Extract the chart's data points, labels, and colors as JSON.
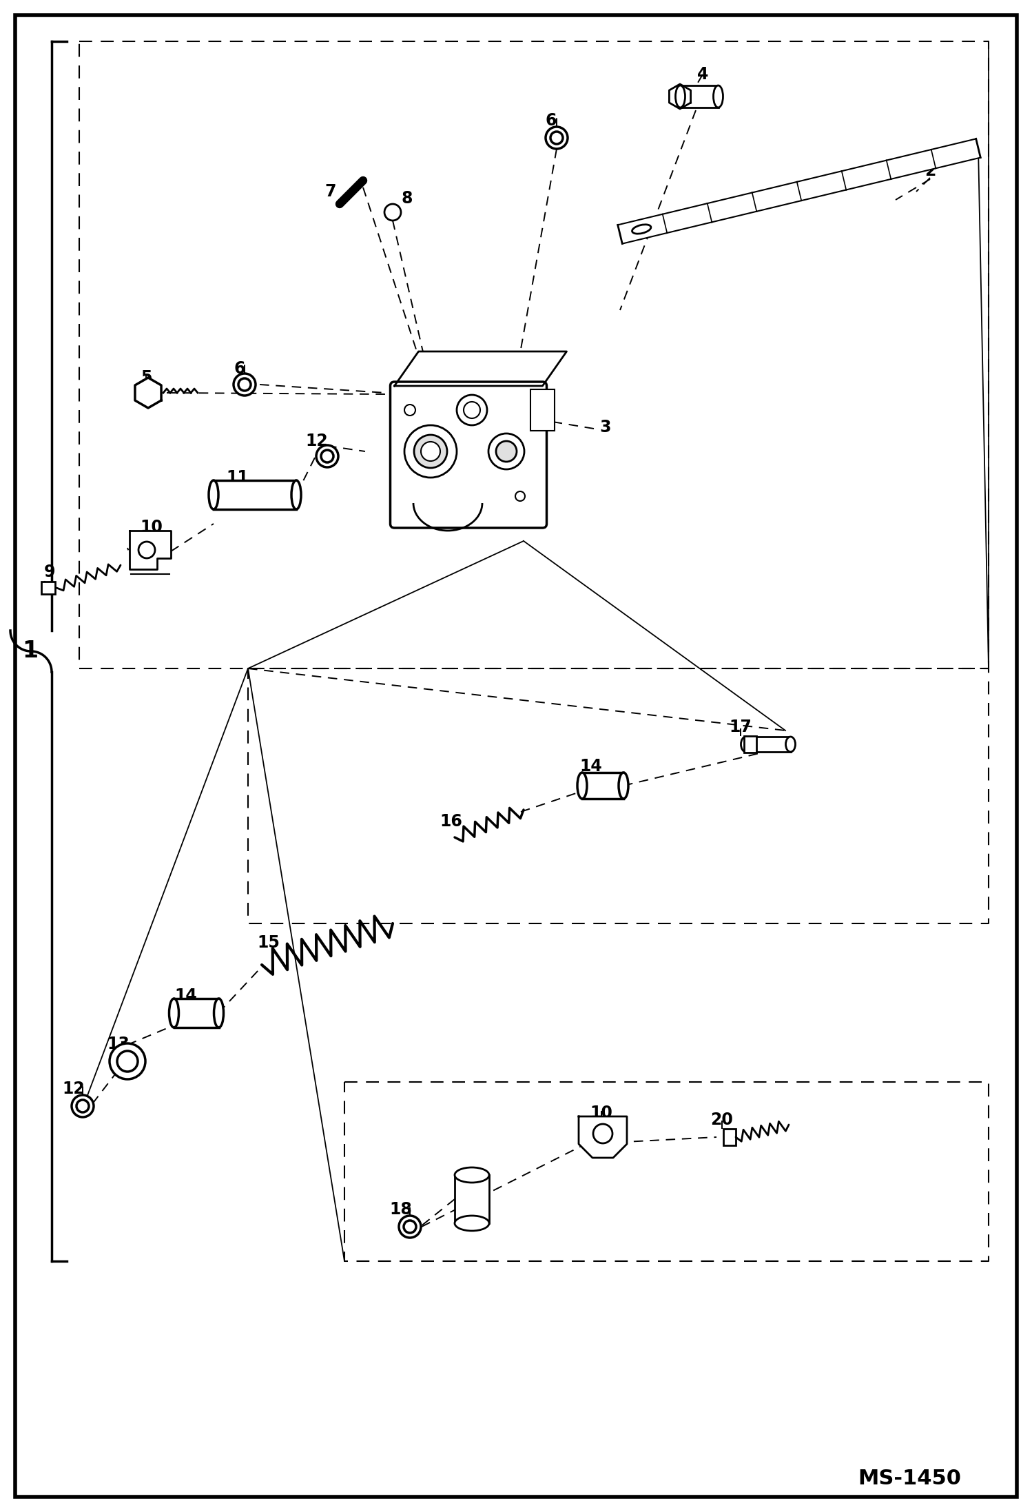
{
  "bg_color": "#ffffff",
  "line_color": "#000000",
  "ms_label": "MS-1450",
  "figsize": [
    14.98,
    21.94
  ],
  "dpi": 100
}
